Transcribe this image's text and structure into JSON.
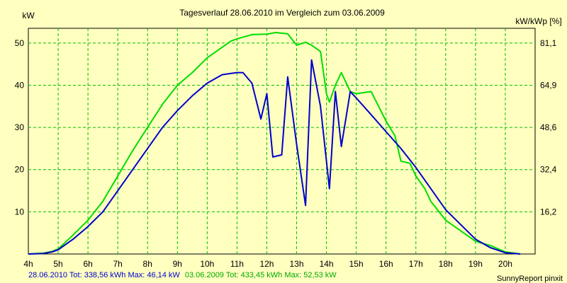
{
  "chart_data": {
    "type": "line",
    "title": "Tagesverlauf 28.06.2010 im Vergleich zum 03.06.2009",
    "ylabel_left": "kW",
    "ylabel_right": "kW/kWp [%]",
    "x_ticks": [
      "4h",
      "5h",
      "6h",
      "7h",
      "8h",
      "9h",
      "10h",
      "11h",
      "12h",
      "13h",
      "14h",
      "15h",
      "16h",
      "17h",
      "18h",
      "19h",
      "20h"
    ],
    "xlim": [
      4,
      21
    ],
    "y_ticks_left": [
      "10",
      "20",
      "30",
      "40",
      "50"
    ],
    "y_ticks_right": [
      "16,2",
      "32,4",
      "48,6",
      "64,9",
      "81,1"
    ],
    "ylim": [
      0,
      53.5
    ],
    "grid": true,
    "series": [
      {
        "name": "28.06.2010",
        "color": "#0000cc",
        "x": [
          4,
          4.5,
          4.8,
          5,
          5.5,
          6,
          6.5,
          7,
          7.5,
          8,
          8.5,
          9,
          9.5,
          10,
          10.5,
          10.8,
          11,
          11.2,
          11.5,
          11.8,
          12,
          12.2,
          12.5,
          12.7,
          13,
          13.3,
          13.5,
          13.8,
          14.1,
          14.3,
          14.5,
          14.8,
          15,
          15.5,
          16,
          16.5,
          17,
          17.5,
          18,
          18.5,
          19,
          19.5,
          20,
          20.5
        ],
        "y": [
          0,
          0.1,
          0.5,
          1,
          3.5,
          6.5,
          10,
          15,
          20,
          25,
          30,
          34,
          37.5,
          40.5,
          42.5,
          42.8,
          43,
          43,
          40.5,
          32,
          38,
          23,
          23.5,
          42,
          26,
          11.5,
          46,
          35,
          15.5,
          38.5,
          25.5,
          38.5,
          37,
          33,
          29,
          25,
          20.5,
          15.5,
          10.5,
          7,
          3.5,
          1.5,
          0.3,
          0
        ]
      },
      {
        "name": "03.06.2009",
        "color": "#00dd00",
        "x": [
          4,
          4.5,
          4.8,
          5,
          5.5,
          6,
          6.5,
          7,
          7.5,
          8,
          8.5,
          9,
          9.5,
          10,
          10.5,
          10.8,
          11,
          11.5,
          12,
          12.3,
          12.7,
          13,
          13.3,
          13.5,
          13.8,
          14,
          14.1,
          14.3,
          14.5,
          14.8,
          15,
          15.5,
          16,
          16.3,
          16.5,
          16.8,
          17,
          17.3,
          17.5,
          18,
          18.5,
          19,
          19.5,
          20,
          20.5
        ],
        "y": [
          0,
          0.2,
          0.6,
          1.2,
          4.5,
          8,
          12.5,
          18.5,
          24.5,
          30,
          35.5,
          40,
          43,
          46.5,
          49,
          50.5,
          51,
          52,
          52.1,
          52.5,
          52.2,
          49.5,
          50.2,
          49.5,
          48,
          38,
          36,
          40,
          43,
          38.5,
          38,
          38.5,
          31.5,
          28,
          22,
          21.5,
          18.5,
          15.5,
          12.5,
          8,
          5.5,
          3,
          2,
          0.5,
          0
        ]
      }
    ]
  },
  "footer": {
    "series1_text": "28.06.2010 Tot: 338,56 kWh Max: 46,14 kW",
    "series2_text": "03.06.2009 Tot: 433,45 kWh Max: 52,53 kW",
    "credit": "SunnyReport pinxit"
  }
}
